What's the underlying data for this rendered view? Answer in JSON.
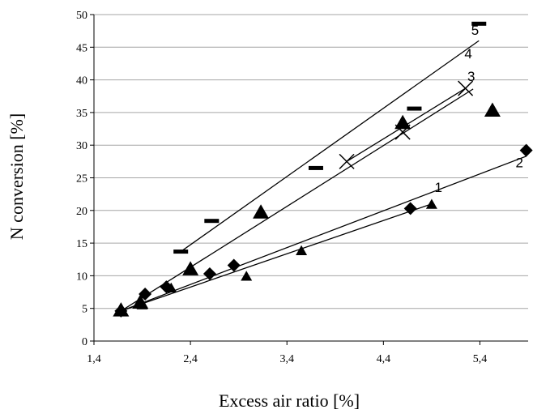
{
  "chart_data": {
    "type": "scatter",
    "title": "",
    "xlabel": "Excess air ratio [%]",
    "ylabel": "N conversion [%]",
    "xlim": [
      1.4,
      5.9
    ],
    "ylim": [
      0,
      50
    ],
    "x_ticks": [
      1.4,
      2.4,
      3.4,
      4.4,
      5.4
    ],
    "x_tick_labels": [
      "1,4",
      "2,4",
      "3,4",
      "4,4",
      "5,4"
    ],
    "y_ticks": [
      0,
      5,
      10,
      15,
      20,
      25,
      30,
      35,
      40,
      45,
      50
    ],
    "y_tick_labels": [
      "0",
      "5",
      "10",
      "15",
      "20",
      "25",
      "30",
      "35",
      "40",
      "45",
      "50"
    ],
    "grid": "horizontal",
    "legend": "none",
    "series": [
      {
        "label": "1",
        "marker": "triangle-small",
        "points": [
          [
            1.68,
            4.7
          ],
          [
            1.9,
            5.5
          ],
          [
            2.2,
            8.1
          ],
          [
            2.98,
            9.9
          ],
          [
            3.55,
            13.8
          ],
          [
            4.9,
            20.9
          ]
        ],
        "fit_line": [
          [
            1.68,
            4.6
          ],
          [
            4.9,
            21.0
          ]
        ],
        "label_pos": [
          4.97,
          22.8
        ]
      },
      {
        "label": "2",
        "marker": "diamond",
        "points": [
          [
            1.68,
            4.6
          ],
          [
            1.93,
            7.2
          ],
          [
            2.15,
            8.3
          ],
          [
            2.6,
            10.3
          ],
          [
            2.85,
            11.6
          ],
          [
            4.68,
            20.3
          ],
          [
            5.88,
            29.2
          ]
        ],
        "fit_line": [
          [
            1.68,
            4.6
          ],
          [
            5.88,
            28.3
          ]
        ],
        "label_pos": [
          5.81,
          26.6
        ]
      },
      {
        "label": "3",
        "marker": "triangle-large",
        "points": [
          [
            1.68,
            4.7
          ],
          [
            1.88,
            5.9
          ],
          [
            2.4,
            11.0
          ],
          [
            3.13,
            19.7
          ],
          [
            4.6,
            33.4
          ],
          [
            5.53,
            35.3
          ]
        ],
        "fit_line": [
          [
            1.68,
            4.6
          ],
          [
            5.33,
            38.6
          ]
        ],
        "label_pos": [
          5.31,
          39.8
        ]
      },
      {
        "label": "4",
        "marker": "x",
        "points": [
          [
            4.02,
            27.5
          ],
          [
            4.6,
            32.0
          ],
          [
            5.25,
            38.7
          ]
        ],
        "fit_line": [
          [
            4.02,
            27.5
          ],
          [
            5.25,
            38.7
          ]
        ],
        "label_pos": [
          5.28,
          43.3
        ]
      },
      {
        "label": "5",
        "marker": "dash",
        "points": [
          [
            2.3,
            13.7
          ],
          [
            2.62,
            18.4
          ],
          [
            3.7,
            26.5
          ],
          [
            4.72,
            35.6
          ],
          [
            5.39,
            48.6
          ]
        ],
        "fit_line": [
          [
            2.3,
            13.7
          ],
          [
            5.39,
            46.0
          ]
        ],
        "label_pos": [
          5.35,
          46.9
        ]
      }
    ]
  }
}
